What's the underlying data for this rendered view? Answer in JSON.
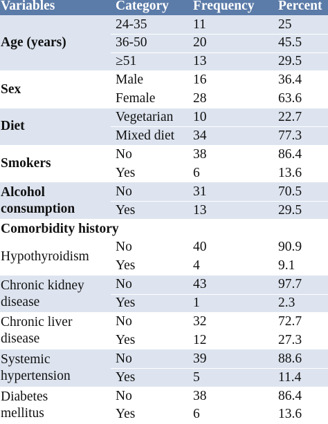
{
  "headers": [
    "Variables",
    "Category",
    "Frequency",
    "Percent"
  ],
  "groups": [
    {
      "label": [
        "Age (years)"
      ],
      "bold": true,
      "rows": [
        [
          "24-35",
          "11",
          "25"
        ],
        [
          "36-50",
          "20",
          "45.5"
        ],
        [
          "≥51",
          "13",
          "29.5"
        ]
      ]
    },
    {
      "label": [
        "Sex"
      ],
      "bold": true,
      "rows": [
        [
          "Male",
          "16",
          "36.4"
        ],
        [
          "Female",
          "28",
          "63.6"
        ]
      ]
    },
    {
      "label": [
        "Diet"
      ],
      "bold": true,
      "rows": [
        [
          "Vegetarian",
          "10",
          "22.7"
        ],
        [
          "Mixed diet",
          "34",
          "77.3"
        ]
      ]
    },
    {
      "label": [
        "Smokers"
      ],
      "bold": true,
      "rows": [
        [
          "No",
          "38",
          "86.4"
        ],
        [
          "Yes",
          "6",
          "13.6"
        ]
      ]
    },
    {
      "label": [
        "Alcohol",
        "consumption"
      ],
      "bold": true,
      "rows": [
        [
          "No",
          "31",
          "70.5"
        ],
        [
          "Yes",
          "13",
          "29.5"
        ]
      ]
    },
    {
      "section": "Comorbidity history"
    },
    {
      "label": [
        "Hypothyroidism"
      ],
      "bold": false,
      "rows": [
        [
          "No",
          "40",
          "90.9"
        ],
        [
          "Yes",
          "4",
          "9.1"
        ]
      ]
    },
    {
      "label": [
        "Chronic kidney",
        "disease"
      ],
      "bold": false,
      "rows": [
        [
          "No",
          "43",
          "97.7"
        ],
        [
          "Yes",
          "1",
          "2.3"
        ]
      ]
    },
    {
      "label": [
        "Chronic liver",
        "disease"
      ],
      "bold": false,
      "rows": [
        [
          "No",
          "32",
          "72.7"
        ],
        [
          "Yes",
          "12",
          "27.3"
        ]
      ]
    },
    {
      "label": [
        "Systemic",
        "hypertension"
      ],
      "bold": false,
      "rows": [
        [
          "No",
          "39",
          "88.6"
        ],
        [
          "Yes",
          "5",
          "11.4"
        ]
      ]
    },
    {
      "label": [
        "Diabetes",
        "mellitus"
      ],
      "bold": false,
      "rows": [
        [
          "No",
          "38",
          "86.4"
        ],
        [
          "Yes",
          "6",
          "13.6"
        ]
      ]
    }
  ]
}
